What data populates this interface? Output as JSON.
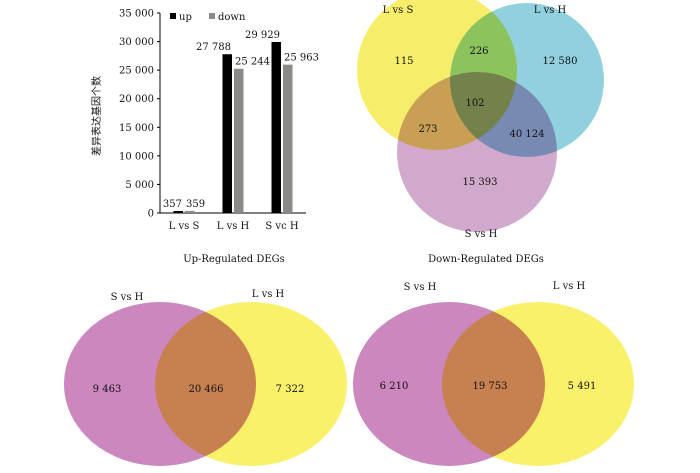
{
  "chart_data": [
    {
      "type": "bar",
      "ylabel": "差异表达基因个数",
      "ylim": [
        0,
        35000
      ],
      "yticks": [
        "0",
        "5 000",
        "10 000",
        "15 000",
        "20 000",
        "25 000",
        "30 000",
        "35 000"
      ],
      "categories": [
        "L vs S",
        "L vs H",
        "S vc H"
      ],
      "legend": "top",
      "series": [
        {
          "name": "up",
          "color": "#000000",
          "values": [
            357,
            27788,
            29929
          ],
          "labels": [
            "357",
            "27 788",
            "29 929"
          ]
        },
        {
          "name": "down",
          "color": "#8c8a86",
          "values": [
            359,
            25244,
            25963
          ],
          "labels": [
            "359",
            "25 244",
            "25 963"
          ]
        }
      ]
    },
    {
      "type": "venn",
      "sets": [
        {
          "name": "L vs S",
          "color": "#f5ec5a"
        },
        {
          "name": "L vs H",
          "color": "#7ec9d8"
        },
        {
          "name": "S vs H",
          "color": "#c99ac4"
        }
      ],
      "regions": {
        "only_L_vs_S": "115",
        "L_vs_S_and_L_vs_H": "226",
        "only_L_vs_H": "12 580",
        "all_three": "102",
        "L_vs_S_and_S_vs_H": "273",
        "L_vs_H_and_S_vs_H": "40 124",
        "only_S_vs_H": "15 393"
      }
    },
    {
      "type": "venn",
      "title": "Up-Regulated DEGs",
      "sets": [
        {
          "name": "S vs H",
          "color": "#c57ab7"
        },
        {
          "name": "L vs H",
          "color": "#faf05a"
        }
      ],
      "regions": {
        "left_only": "9 463",
        "both": "20 466",
        "right_only": "7 322"
      }
    },
    {
      "type": "venn",
      "title": "Down-Regulated DEGs",
      "sets": [
        {
          "name": "S vs H",
          "color": "#c57ab7"
        },
        {
          "name": "L vs H",
          "color": "#faf05a"
        }
      ],
      "regions": {
        "left_only": "6 210",
        "both": "19 753",
        "right_only": "5 491"
      }
    }
  ]
}
